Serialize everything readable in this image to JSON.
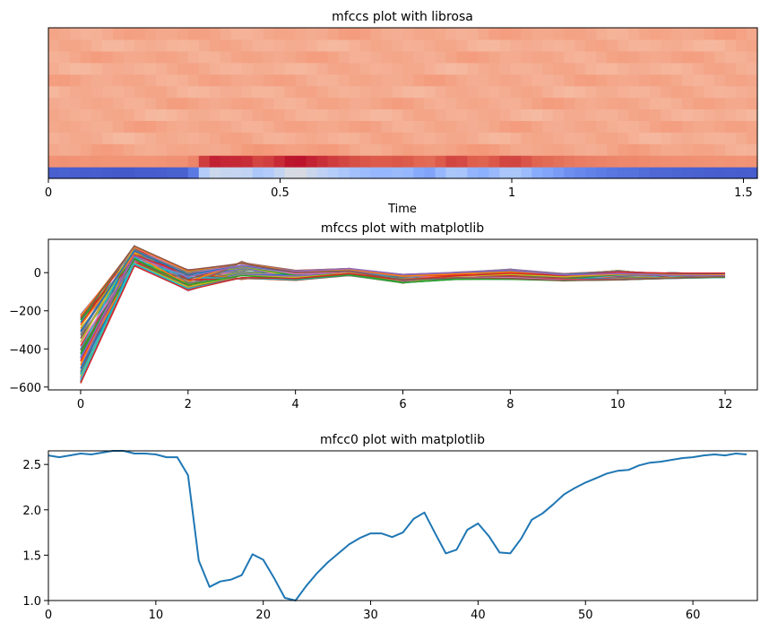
{
  "chart_data": [
    {
      "type": "heatmap",
      "title": "mfccs plot with librosa",
      "xlabel": "Time",
      "ylabel": "",
      "xlim": [
        0,
        1.53
      ],
      "x_ticks": [
        0,
        0.5,
        1,
        1.5
      ],
      "x_tick_labels": [
        "0",
        "0.5",
        "1",
        "1.5"
      ],
      "n_coefficients": 13,
      "n_frames": 66,
      "colormap": "coolwarm",
      "row0_mfcc0_values": [
        2.6,
        2.58,
        2.6,
        2.62,
        2.61,
        2.63,
        2.65,
        2.65,
        2.62,
        2.62,
        2.61,
        2.58,
        2.58,
        2.38,
        1.44,
        1.15,
        1.21,
        1.23,
        1.28,
        1.51,
        1.45,
        1.25,
        1.03,
        1.0,
        1.16,
        1.3,
        1.42,
        1.52,
        1.62,
        1.69,
        1.74,
        1.74,
        1.7,
        1.75,
        1.9,
        1.97,
        1.74,
        1.52,
        1.56,
        1.78,
        1.85,
        1.71,
        1.53,
        1.52,
        1.68,
        1.89,
        1.96,
        2.06,
        2.17,
        2.24,
        2.3,
        2.35,
        2.4,
        2.43,
        2.44,
        2.49,
        2.52,
        2.53,
        2.55,
        2.57,
        2.58,
        2.6,
        2.61,
        2.6,
        2.62,
        2.61
      ]
    },
    {
      "type": "line",
      "title": "mfccs plot with matplotlib",
      "xlabel": "",
      "ylabel": "",
      "xlim": [
        -0.6,
        12.6
      ],
      "ylim": [
        -615,
        175
      ],
      "x_ticks": [
        0,
        2,
        4,
        6,
        8,
        10,
        12
      ],
      "y_ticks": [
        -600,
        -400,
        -200,
        0
      ],
      "x": [
        0,
        1,
        2,
        3,
        4,
        5,
        6,
        7,
        8,
        9,
        10,
        11,
        12
      ],
      "n_series": 66,
      "envelope_low": [
        -580,
        35,
        -95,
        -35,
        -40,
        -15,
        -55,
        -35,
        -35,
        -42,
        -38,
        -30,
        -25
      ],
      "envelope_high": [
        -220,
        140,
        15,
        58,
        12,
        22,
        -10,
        2,
        18,
        -5,
        12,
        0,
        -2
      ],
      "series_colors": [
        "#1f77b4",
        "#ff7f0e",
        "#2ca02c",
        "#d62728",
        "#9467bd",
        "#8c564b",
        "#e377c2",
        "#7f7f7f",
        "#bcbd22",
        "#17becf"
      ]
    },
    {
      "type": "line",
      "title": "mfcc0 plot with matplotlib",
      "xlabel": "",
      "ylabel": "",
      "xlim": [
        0,
        66
      ],
      "ylim": [
        1.0,
        2.65
      ],
      "x_ticks": [
        0,
        10,
        20,
        30,
        40,
        50,
        60
      ],
      "y_ticks": [
        1.0,
        1.5,
        2.0,
        2.5
      ],
      "y_tick_labels": [
        "1.0",
        "1.5",
        "2.0",
        "2.5"
      ],
      "series": [
        {
          "name": "mfcc0",
          "color": "#1f77b4",
          "values": [
            2.6,
            2.58,
            2.6,
            2.62,
            2.61,
            2.63,
            2.65,
            2.65,
            2.62,
            2.62,
            2.61,
            2.58,
            2.58,
            2.38,
            1.44,
            1.15,
            1.21,
            1.23,
            1.28,
            1.51,
            1.45,
            1.25,
            1.03,
            1.0,
            1.16,
            1.3,
            1.42,
            1.52,
            1.62,
            1.69,
            1.74,
            1.74,
            1.7,
            1.75,
            1.9,
            1.97,
            1.74,
            1.52,
            1.56,
            1.78,
            1.85,
            1.71,
            1.53,
            1.52,
            1.68,
            1.89,
            1.96,
            2.06,
            2.17,
            2.24,
            2.3,
            2.35,
            2.4,
            2.43,
            2.44,
            2.49,
            2.52,
            2.53,
            2.55,
            2.57,
            2.58,
            2.6,
            2.61,
            2.6,
            2.62,
            2.61
          ]
        }
      ]
    }
  ]
}
